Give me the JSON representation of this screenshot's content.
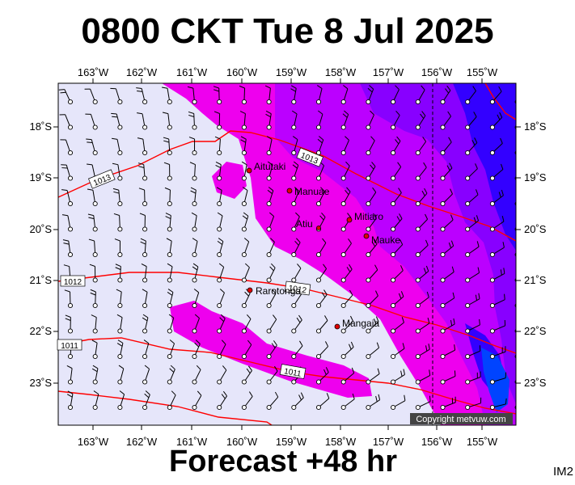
{
  "header": {
    "title": "0800 CKT Tue 8 Jul 2025"
  },
  "footer": {
    "forecast": "Forecast +48 hr",
    "map_id": "IM2"
  },
  "map": {
    "copyright": "Copyright metvuw.com",
    "colors": {
      "background": "#e6e6fa",
      "purple": "#ee00ee",
      "violet": "#bb00ff",
      "deep_violet": "#8800ff",
      "blue": "#3300ff",
      "deep_blue": "#0044ff",
      "isobar": "#ff0000"
    },
    "lon_labels": [
      "163˚W",
      "162˚W",
      "161˚W",
      "160˚W",
      "159˚W",
      "158˚W",
      "157˚W",
      "156˚W",
      "155˚W"
    ],
    "lat_labels": [
      "18˚S",
      "19˚S",
      "20˚S",
      "21˚S",
      "22˚S",
      "23˚S"
    ],
    "places": [
      {
        "name": "Aitutaki"
      },
      {
        "name": "Manuae"
      },
      {
        "name": "Mitiaro"
      },
      {
        "name": "Atiu"
      },
      {
        "name": "Mauke"
      },
      {
        "name": "Rarotonga"
      },
      {
        "name": "Mangaia"
      }
    ],
    "isobars": [
      "1013",
      "1013",
      "1012",
      "1012",
      "1011",
      "1011"
    ]
  }
}
